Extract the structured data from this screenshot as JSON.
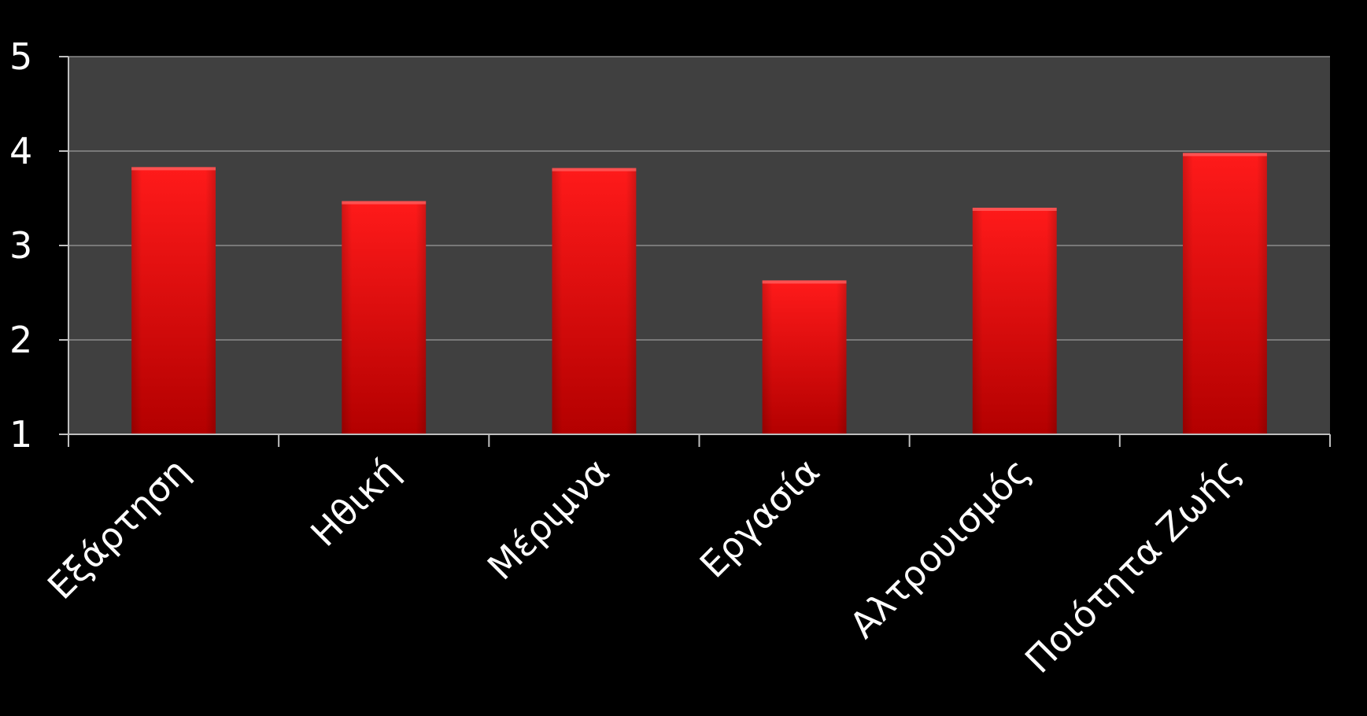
{
  "chart_data": {
    "type": "bar",
    "categories": [
      "Εξάρτηση",
      "Ηθική",
      "Μέριμνα",
      "Εργασία",
      "Αλτρουισμός",
      "Ποιότητα Ζωής"
    ],
    "values": [
      3.83,
      3.47,
      3.82,
      2.63,
      3.4,
      3.98
    ],
    "ylim": [
      1,
      5
    ],
    "yticks": [
      1,
      2,
      3,
      4,
      5
    ],
    "grid": true,
    "title": "",
    "xlabel": "",
    "ylabel": "",
    "colors": {
      "background": "#000000",
      "plot_area": "#404040",
      "gridline": "#8c8c8c",
      "bar_top": "#ff1a1a",
      "bar_bottom": "#b30000",
      "axis": "#bfbfbf",
      "text": "#ffffff"
    }
  }
}
